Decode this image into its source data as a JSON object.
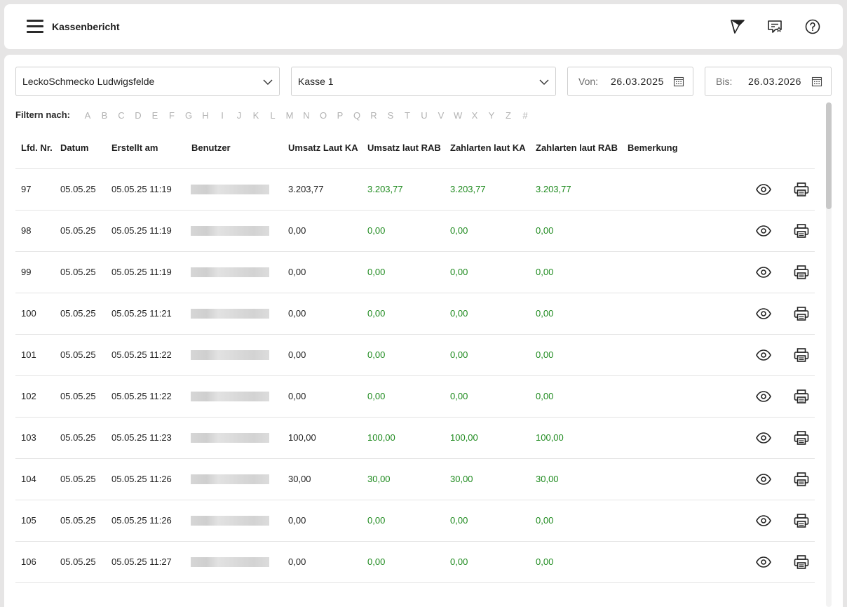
{
  "header": {
    "title": "Kassenbericht"
  },
  "filters": {
    "location": "LeckoSchmecko Ludwigsfelde",
    "register": "Kasse 1",
    "from_label": "Von:",
    "from_date": "26.03.2025",
    "to_label": "Bis:",
    "to_date": "26.03.2026"
  },
  "alpha_filter": {
    "label": "Filtern nach:",
    "letters": [
      "A",
      "B",
      "C",
      "D",
      "E",
      "F",
      "G",
      "H",
      "I",
      "J",
      "K",
      "L",
      "M",
      "N",
      "O",
      "P",
      "Q",
      "R",
      "S",
      "T",
      "U",
      "V",
      "W",
      "X",
      "Y",
      "Z",
      "#"
    ]
  },
  "table": {
    "columns": [
      "Lfd. Nr.",
      "Datum",
      "Erstellt am",
      "Benutzer",
      "Umsatz Laut KA",
      "Umsatz laut RAB",
      "Zahlarten laut KA",
      "Zahlarten laut RAB",
      "Bemerkung"
    ],
    "rows": [
      {
        "nr": "97",
        "datum": "05.05.25",
        "erstellt": "05.05.25 11:19",
        "umsatz_ka": "3.203,77",
        "umsatz_rab": "3.203,77",
        "zahl_ka": "3.203,77",
        "zahl_rab": "3.203,77"
      },
      {
        "nr": "98",
        "datum": "05.05.25",
        "erstellt": "05.05.25 11:19",
        "umsatz_ka": "0,00",
        "umsatz_rab": "0,00",
        "zahl_ka": "0,00",
        "zahl_rab": "0,00"
      },
      {
        "nr": "99",
        "datum": "05.05.25",
        "erstellt": "05.05.25 11:19",
        "umsatz_ka": "0,00",
        "umsatz_rab": "0,00",
        "zahl_ka": "0,00",
        "zahl_rab": "0,00"
      },
      {
        "nr": "100",
        "datum": "05.05.25",
        "erstellt": "05.05.25 11:21",
        "umsatz_ka": "0,00",
        "umsatz_rab": "0,00",
        "zahl_ka": "0,00",
        "zahl_rab": "0,00"
      },
      {
        "nr": "101",
        "datum": "05.05.25",
        "erstellt": "05.05.25 11:22",
        "umsatz_ka": "0,00",
        "umsatz_rab": "0,00",
        "zahl_ka": "0,00",
        "zahl_rab": "0,00"
      },
      {
        "nr": "102",
        "datum": "05.05.25",
        "erstellt": "05.05.25 11:22",
        "umsatz_ka": "0,00",
        "umsatz_rab": "0,00",
        "zahl_ka": "0,00",
        "zahl_rab": "0,00"
      },
      {
        "nr": "103",
        "datum": "05.05.25",
        "erstellt": "05.05.25 11:23",
        "umsatz_ka": "100,00",
        "umsatz_rab": "100,00",
        "zahl_ka": "100,00",
        "zahl_rab": "100,00"
      },
      {
        "nr": "104",
        "datum": "05.05.25",
        "erstellt": "05.05.25 11:26",
        "umsatz_ka": "30,00",
        "umsatz_rab": "30,00",
        "zahl_ka": "30,00",
        "zahl_rab": "30,00"
      },
      {
        "nr": "105",
        "datum": "05.05.25",
        "erstellt": "05.05.25 11:26",
        "umsatz_ka": "0,00",
        "umsatz_rab": "0,00",
        "zahl_ka": "0,00",
        "zahl_rab": "0,00"
      },
      {
        "nr": "106",
        "datum": "05.05.25",
        "erstellt": "05.05.25 11:27",
        "umsatz_ka": "0,00",
        "umsatz_rab": "0,00",
        "zahl_ka": "0,00",
        "zahl_rab": "0,00"
      }
    ]
  },
  "colors": {
    "match_green": "#1e8a1e",
    "background": "#e6e5e5"
  },
  "icons": {
    "menu": "hamburger-icon",
    "flag": "flag-icon",
    "feedback": "chat-star-icon",
    "help": "help-circle-icon",
    "view": "eye-icon",
    "print": "printer-icon",
    "calendar": "calendar-icon"
  }
}
